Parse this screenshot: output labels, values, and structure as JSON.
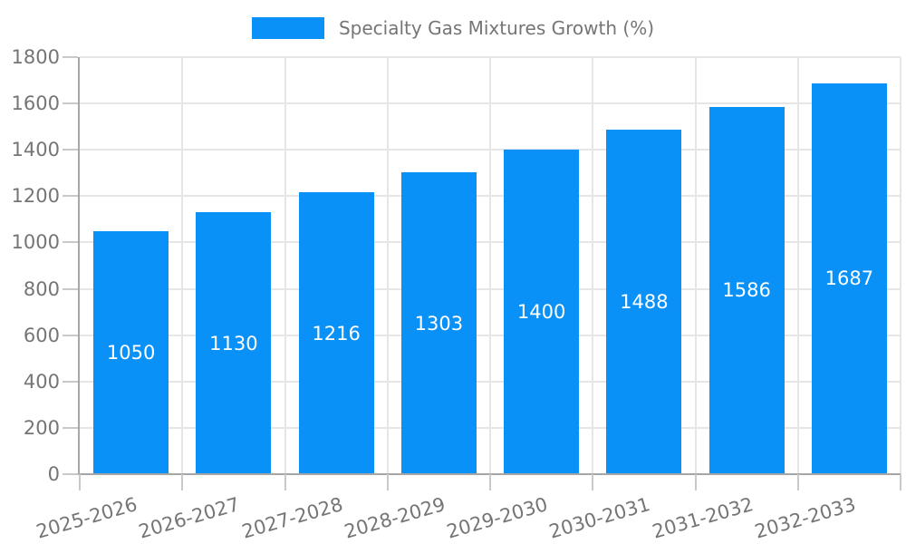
{
  "legend": {
    "label": "Specialty Gas Mixtures Growth (%)"
  },
  "colors": {
    "bar": "#0991f8",
    "grid": "#e6e6e6",
    "axis": "#a6a6a6",
    "tick": "#c9c9c9",
    "text": "#757575",
    "value_label": "#ffffff",
    "background": "#ffffff"
  },
  "chart_data": {
    "type": "bar",
    "title": "",
    "xlabel": "",
    "ylabel": "",
    "categories": [
      "2025-2026",
      "2026-2027",
      "2027-2028",
      "2028-2029",
      "2029-2030",
      "2030-2031",
      "2031-2032",
      "2032-2033"
    ],
    "series": [
      {
        "name": "Specialty Gas Mixtures Growth (%)",
        "values": [
          1050,
          1130,
          1216,
          1303,
          1400,
          1488,
          1586,
          1687
        ]
      }
    ],
    "ylim": [
      0,
      1800
    ],
    "yticks": [
      0,
      200,
      400,
      600,
      800,
      1000,
      1200,
      1400,
      1600,
      1800
    ],
    "grid": true,
    "legend_position": "top-center",
    "value_labels": "inside-center",
    "x_label_rotation_deg": -16
  }
}
